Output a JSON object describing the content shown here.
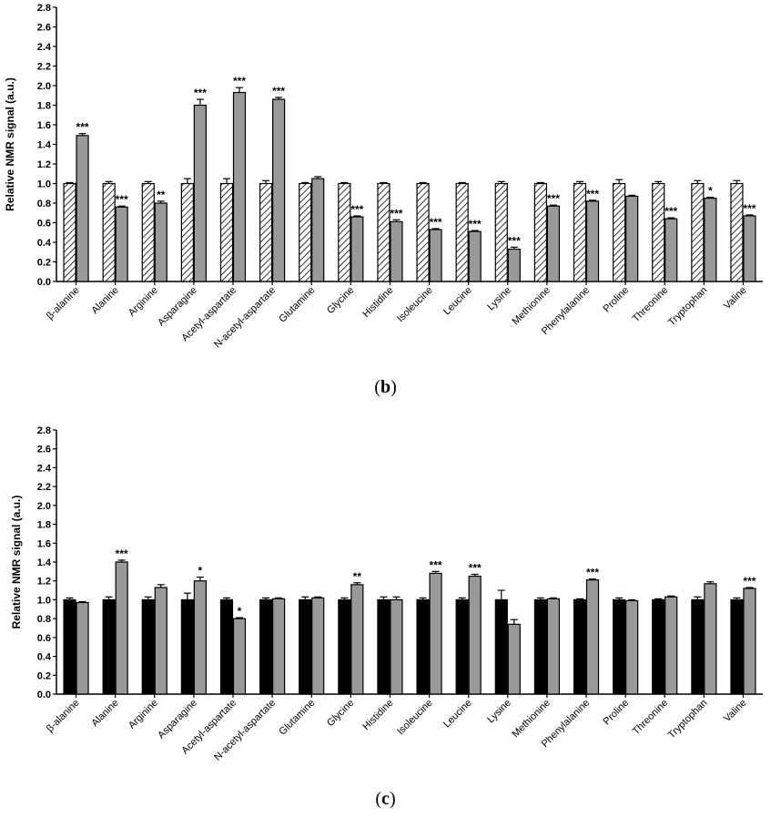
{
  "figure": {
    "label_b": "b",
    "label_c": "c"
  },
  "colors": {
    "control_b_fill": "#ffffff",
    "hatch": "#000000",
    "control_c_fill": "#000000",
    "treated_fill": "#999999",
    "axis": "#000000"
  },
  "chart_data": [
    {
      "panel": "b",
      "type": "bar",
      "ylabel": "Relative NMR signal  (a.u.)",
      "ylim": [
        0,
        2.8
      ],
      "yticks": [
        "0.0",
        "0.2",
        "0.4",
        "0.6",
        "0.8",
        "1.0",
        "1.2",
        "1.4",
        "1.6",
        "1.8",
        "2.0",
        "2.2",
        "2.4",
        "2.6",
        "2.8"
      ],
      "categories": [
        "β-alanine",
        "Alanine",
        "Arginine",
        "Asparagine",
        "Acetyl-aspartate",
        "N-acetyl-aspartate",
        "Glutamine",
        "Glycine",
        "Histidine",
        "Isoleucine",
        "Leucine",
        "Lysine",
        "Methionine",
        "Phenylalanine",
        "Proline",
        "Threonine",
        "Tryptophan",
        "Valine"
      ],
      "series": [
        {
          "style": "hatched",
          "values": [
            1.0,
            1.0,
            1.0,
            1.0,
            1.0,
            1.0,
            1.0,
            1.0,
            1.0,
            1.0,
            1.0,
            1.0,
            1.0,
            1.0,
            1.0,
            1.0,
            1.0,
            1.0
          ],
          "errors": [
            0.01,
            0.02,
            0.02,
            0.05,
            0.05,
            0.03,
            0.01,
            0.01,
            0.01,
            0.01,
            0.01,
            0.02,
            0.01,
            0.02,
            0.04,
            0.02,
            0.03,
            0.03
          ]
        },
        {
          "style": "gray",
          "values": [
            1.49,
            0.76,
            0.8,
            1.8,
            1.93,
            1.86,
            1.05,
            0.66,
            0.61,
            0.53,
            0.51,
            0.33,
            0.77,
            0.82,
            0.87,
            0.64,
            0.85,
            0.67
          ],
          "errors": [
            0.02,
            0.01,
            0.02,
            0.06,
            0.05,
            0.02,
            0.02,
            0.01,
            0.02,
            0.01,
            0.01,
            0.02,
            0.01,
            0.01,
            0.01,
            0.01,
            0.01,
            0.01
          ]
        }
      ],
      "annotations": [
        "***",
        "***",
        "**",
        "***",
        "***",
        "***",
        "",
        "***",
        "***",
        "***",
        "***",
        "***",
        "***",
        "***",
        "",
        "***",
        "*",
        "***"
      ]
    },
    {
      "panel": "c",
      "type": "bar",
      "ylabel": "Relative NMR signal  (a.u.)",
      "ylim": [
        0,
        2.8
      ],
      "yticks": [
        "0.0",
        "0.2",
        "0.4",
        "0.6",
        "0.8",
        "1.0",
        "1.2",
        "1.4",
        "1.6",
        "1.8",
        "2.0",
        "2.2",
        "2.4",
        "2.6",
        "2.8"
      ],
      "categories": [
        "β-alanine",
        "Alanine",
        "Arginine",
        "Asparagine",
        "Acetyl-aspartate",
        "N-acetyl-aspartate",
        "Glutamine",
        "Glycine",
        "Histidine",
        "Isoleucine",
        "Leucine",
        "Lysine",
        "Methionine",
        "Phenylalanine",
        "Proline",
        "Threonine",
        "Tryptophan",
        "Valine"
      ],
      "series": [
        {
          "style": "black",
          "values": [
            1.0,
            1.0,
            1.0,
            1.0,
            1.0,
            1.0,
            1.0,
            1.0,
            1.0,
            1.0,
            1.0,
            1.0,
            1.0,
            1.0,
            1.0,
            1.0,
            1.0,
            1.0
          ],
          "errors": [
            0.02,
            0.03,
            0.03,
            0.07,
            0.02,
            0.02,
            0.03,
            0.02,
            0.03,
            0.02,
            0.02,
            0.1,
            0.02,
            0.01,
            0.02,
            0.01,
            0.03,
            0.02
          ]
        },
        {
          "style": "gray",
          "values": [
            0.97,
            1.4,
            1.13,
            1.2,
            0.8,
            1.01,
            1.02,
            1.16,
            1.0,
            1.28,
            1.25,
            0.74,
            1.01,
            1.21,
            0.99,
            1.03,
            1.17,
            1.12
          ],
          "errors": [
            0.01,
            0.02,
            0.03,
            0.04,
            0.01,
            0.01,
            0.01,
            0.02,
            0.03,
            0.02,
            0.02,
            0.05,
            0.01,
            0.01,
            0.01,
            0.01,
            0.02,
            0.01
          ]
        }
      ],
      "annotations": [
        "",
        "***",
        "",
        "*",
        "*",
        "",
        "",
        "**",
        "",
        "***",
        "***",
        "",
        "",
        "***",
        "",
        "",
        "",
        "***"
      ]
    }
  ]
}
